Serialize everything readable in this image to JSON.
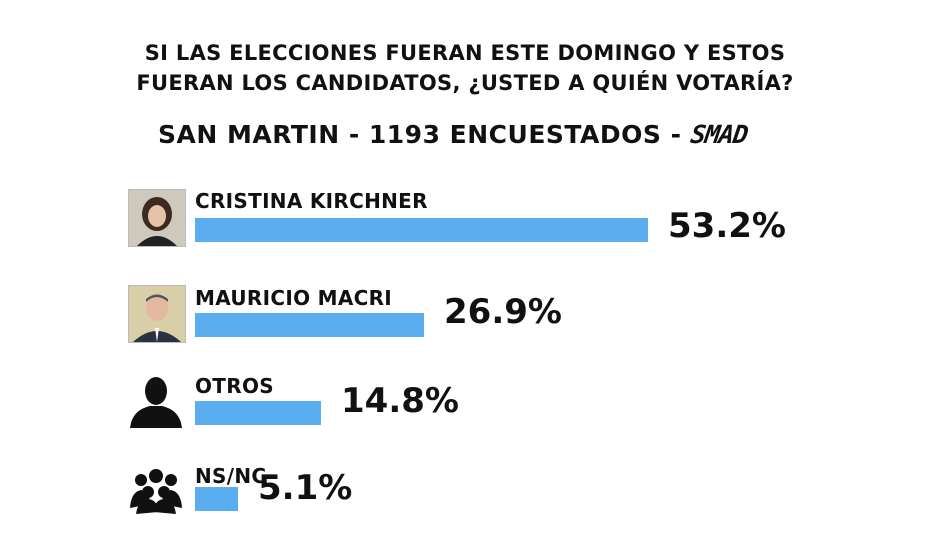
{
  "question": {
    "line1": "SI LAS ELECCIONES FUERAN ESTE DOMINGO Y ESTOS",
    "line2": "FUERAN LOS CANDIDATOS, ¿USTED A QUIÉN VOTARÍA?"
  },
  "subtitle": {
    "text": "SAN MARTIN - 1193 ENCUESTADOS - ",
    "brand": "SMAD"
  },
  "colors": {
    "bar": "#5aaeef",
    "text": "#111111"
  },
  "chart_data": {
    "type": "bar",
    "orientation": "horizontal",
    "title": "SI LAS ELECCIONES FUERAN ESTE DOMINGO Y ESTOS FUERAN LOS CANDIDATOS, ¿USTED A QUIÉN VOTARÍA?",
    "subtitle": "SAN MARTIN - 1193 ENCUESTADOS - SMAD",
    "categories": [
      "CRISTINA KIRCHNER",
      "MAURICIO MACRI",
      "OTROS",
      "NS/NC"
    ],
    "values": [
      53.2,
      26.9,
      14.8,
      5.1
    ],
    "value_labels": [
      "53.2%",
      "26.9%",
      "14.8%",
      "5.1%"
    ],
    "icons": [
      "candidate-photo-icon",
      "candidate-photo-icon",
      "person-silhouette-icon",
      "group-icon"
    ],
    "xlabel": "",
    "ylabel": "",
    "xlim": [
      0,
      53.2
    ],
    "grid": false,
    "legend": "none"
  }
}
